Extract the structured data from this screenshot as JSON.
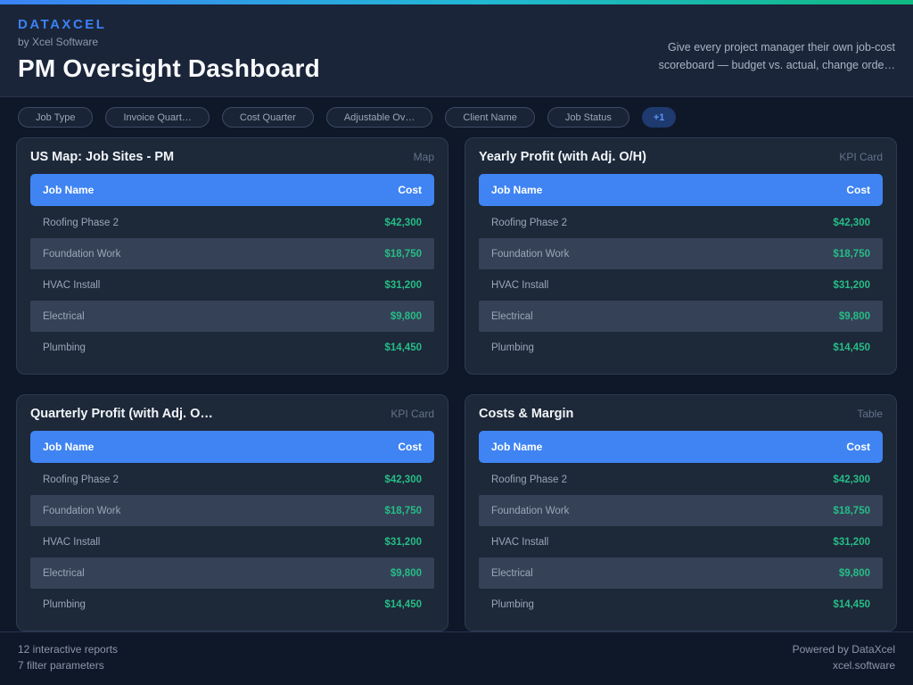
{
  "colors": {
    "accent": "#3b82f6",
    "grad1": "#3b82f6",
    "grad2": "#22b8d4",
    "grad3": "#10b981",
    "thead": "#3f84f2",
    "positive": "#26bd87",
    "page-bg": "#0f1828",
    "header-bg": "#1b2539",
    "card-bg": "#1d2838",
    "card-border": "#2d3b54",
    "row-alt": "#354156"
  },
  "header": {
    "logo": "DATAXCEL",
    "byline": "by Xcel Software",
    "title": "PM Oversight Dashboard",
    "tagline": "Give every project manager their own job-cost scoreboard — budget vs. actual, change orde…"
  },
  "filters": {
    "pills": [
      "Job Type",
      "Invoice Quart…",
      "Cost Quarter",
      "Adjustable Ov…",
      "Client Name",
      "Job Status"
    ],
    "overflow": "+1"
  },
  "cards": [
    {
      "title": "US Map: Job Sites - PM",
      "type": "Map"
    },
    {
      "title": "Yearly Profit (with Adj. O/H)",
      "type": "KPI Card"
    },
    {
      "title": "Quarterly Profit (with Adj. O…",
      "type": "KPI Card"
    },
    {
      "title": "Costs & Margin",
      "type": "Table"
    }
  ],
  "table": {
    "columns": [
      "Job Name",
      "Cost"
    ],
    "rows": [
      {
        "job": "Roofing Phase 2",
        "cost": "$42,300"
      },
      {
        "job": "Foundation Work",
        "cost": "$18,750"
      },
      {
        "job": "HVAC Install",
        "cost": "$31,200"
      },
      {
        "job": "Electrical",
        "cost": "$9,800"
      },
      {
        "job": "Plumbing",
        "cost": "$14,450"
      }
    ]
  },
  "footer": {
    "reports": "12 interactive reports",
    "filters": "7 filter parameters",
    "powered": "Powered by DataXcel",
    "site": "xcel.software"
  }
}
